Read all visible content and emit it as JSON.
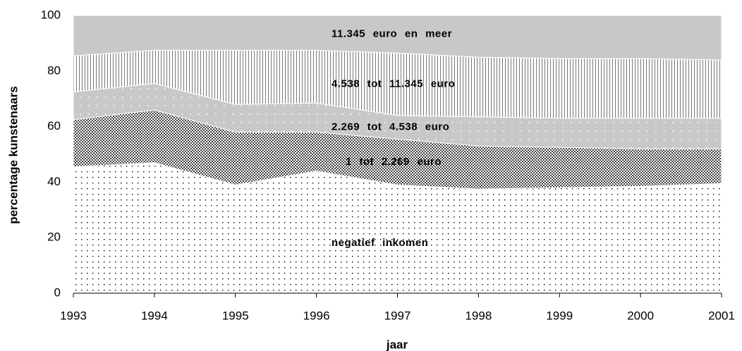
{
  "chart_data": {
    "type": "stacked_area",
    "x_label": "jaar",
    "y_label": "percentage kunstenaars",
    "x": [
      1993,
      1994,
      1995,
      1996,
      1997,
      1998,
      1999,
      2000,
      2001
    ],
    "xlim": [
      1993,
      2001
    ],
    "xticks": [
      1993,
      1994,
      1995,
      1996,
      1997,
      1998,
      1999,
      2000,
      2001
    ],
    "ylim": [
      0,
      100
    ],
    "yticks": [
      0,
      20,
      40,
      60,
      80,
      100
    ],
    "series": [
      {
        "name": "negatief inkomen",
        "color": "#ffffff",
        "pattern": "dots",
        "values": [
          45.5,
          47,
          39,
          44,
          39,
          37.5,
          38,
          38.5,
          39.5
        ]
      },
      {
        "name": "1 tot 2.269 euro",
        "color": "#9a9a9a",
        "pattern": "crosshatch",
        "values": [
          17,
          19,
          19,
          14,
          16.5,
          15.5,
          14.5,
          13.5,
          12.5
        ]
      },
      {
        "name": "2.269 tot 4.538 euro",
        "color": "#c8c8c8",
        "pattern": "white-dots",
        "values": [
          10,
          9.5,
          10,
          10.5,
          8.5,
          10.5,
          10.5,
          11,
          11
        ]
      },
      {
        "name": "4.538 tot 11.345 euro",
        "color": "#ffffff",
        "pattern": "vertical-lines",
        "values": [
          13,
          12,
          19.5,
          19,
          22.5,
          21.5,
          21.5,
          21.5,
          21
        ]
      },
      {
        "name": "11.345 euro en meer",
        "color": "#c8c8c8",
        "pattern": "solid",
        "values": [
          14.5,
          12.5,
          12.5,
          12.5,
          13.5,
          15,
          15.5,
          15.5,
          16
        ]
      }
    ]
  }
}
